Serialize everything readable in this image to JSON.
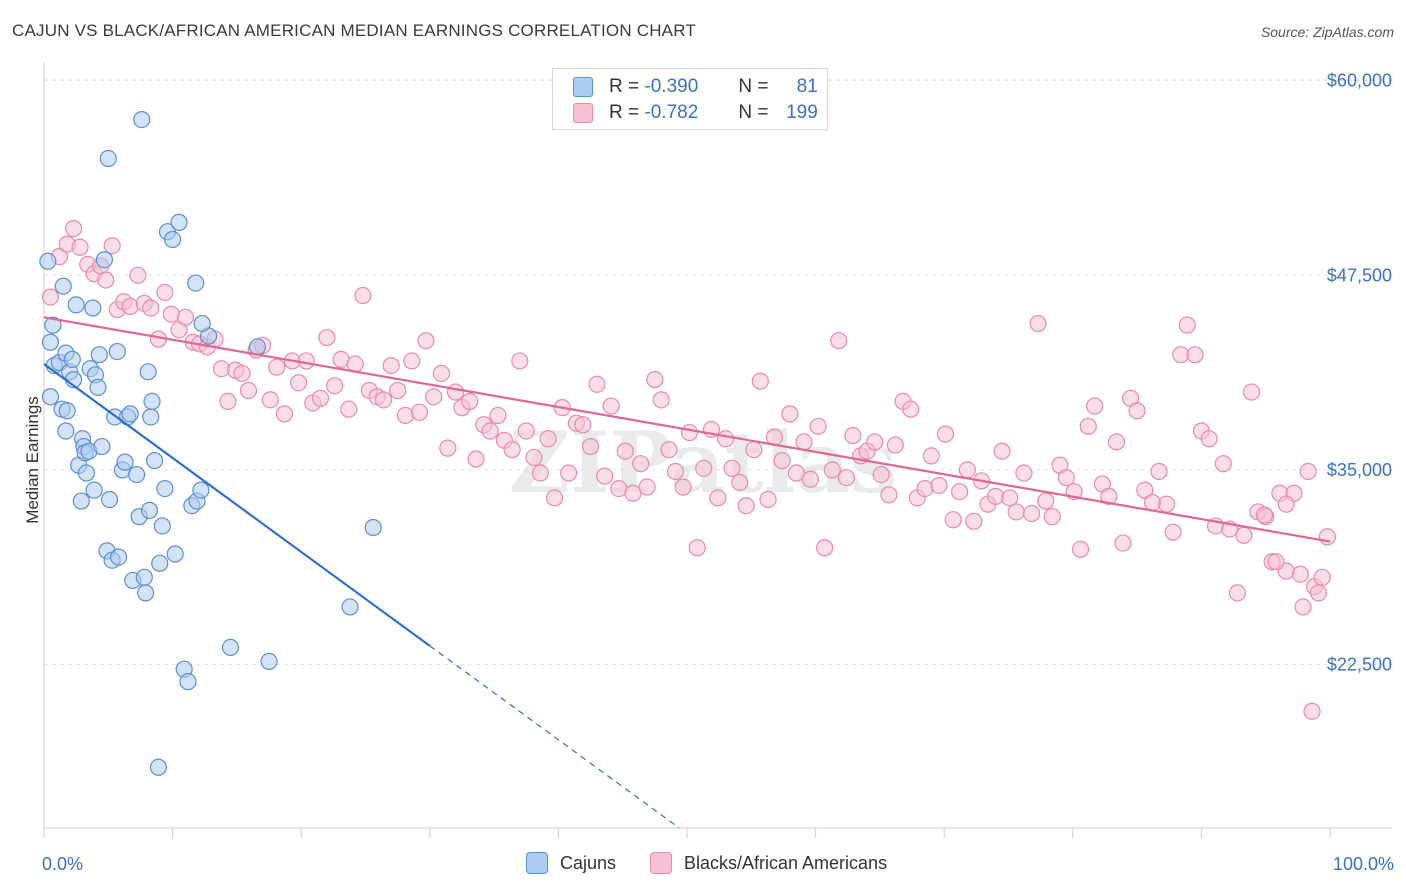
{
  "title": "CAJUN VS BLACK/AFRICAN AMERICAN MEDIAN EARNINGS CORRELATION CHART",
  "source": "Source: ZipAtlas.com",
  "watermark": "ZIPatlas",
  "colors": {
    "cajun_fill": "#aecbf0",
    "cajun_stroke": "#5b8fd6",
    "cajun_line": "#2f6fcf",
    "black_fill": "#f6c1d3",
    "black_stroke": "#e98aab",
    "black_line": "#e06694",
    "axis_label": "#3a72c4",
    "grid": "#e3e3e3"
  },
  "legend": {
    "rows": [
      {
        "r_label": "R =",
        "r_value": "-0.390",
        "n_label": "N =",
        "n_value": "81"
      },
      {
        "r_label": "R =",
        "r_value": "-0.782",
        "n_label": "N =",
        "n_value": "199"
      }
    ]
  },
  "bottom_legend": [
    "Cajuns",
    "Blacks/African Americans"
  ],
  "chart_data": {
    "type": "scatter",
    "title": "CAJUN VS BLACK/AFRICAN AMERICAN MEDIAN EARNINGS CORRELATION CHART",
    "xlabel": "",
    "ylabel": "Median Earnings",
    "x_tick_labels": [
      "0.0%",
      "100.0%"
    ],
    "y_tick_labels": [
      "$22,500",
      "$35,000",
      "$47,500",
      "$60,000"
    ],
    "y_ticks": [
      22500,
      35000,
      47500,
      60000
    ],
    "xlim": [
      0,
      100
    ],
    "ylim": [
      12000,
      61200
    ],
    "grid": true,
    "legend_position": "top-center",
    "series": [
      {
        "name": "Cajuns",
        "R": -0.39,
        "N": 81,
        "trend": {
          "x0": 0,
          "y0": 41800,
          "x1": 30,
          "y1": 23700,
          "dashed_to_x": 53,
          "dashed_to_y": 10300
        },
        "points": [
          [
            0.3,
            48400
          ],
          [
            0.5,
            43200
          ],
          [
            0.7,
            44300
          ],
          [
            0.5,
            39700
          ],
          [
            0.8,
            41700
          ],
          [
            1.2,
            41900
          ],
          [
            1.4,
            38900
          ],
          [
            1.5,
            46800
          ],
          [
            1.7,
            42500
          ],
          [
            1.7,
            37500
          ],
          [
            1.8,
            38800
          ],
          [
            2.0,
            41300
          ],
          [
            2.2,
            42100
          ],
          [
            2.3,
            40800
          ],
          [
            2.5,
            45600
          ],
          [
            2.7,
            35300
          ],
          [
            2.9,
            33000
          ],
          [
            3.0,
            37000
          ],
          [
            3.1,
            36500
          ],
          [
            3.2,
            36100
          ],
          [
            3.3,
            34800
          ],
          [
            3.5,
            36200
          ],
          [
            3.6,
            41500
          ],
          [
            3.8,
            45400
          ],
          [
            3.9,
            33700
          ],
          [
            4.0,
            41100
          ],
          [
            4.2,
            40300
          ],
          [
            4.3,
            42400
          ],
          [
            4.5,
            36500
          ],
          [
            4.7,
            48500
          ],
          [
            4.9,
            29800
          ],
          [
            5.0,
            55000
          ],
          [
            5.1,
            33100
          ],
          [
            5.3,
            29200
          ],
          [
            5.5,
            38400
          ],
          [
            5.7,
            42600
          ],
          [
            5.8,
            29400
          ],
          [
            6.1,
            35000
          ],
          [
            6.3,
            35500
          ],
          [
            6.5,
            38400
          ],
          [
            6.7,
            38600
          ],
          [
            6.9,
            27900
          ],
          [
            7.2,
            34700
          ],
          [
            7.4,
            32000
          ],
          [
            7.6,
            57500
          ],
          [
            7.8,
            28100
          ],
          [
            7.9,
            27100
          ],
          [
            8.1,
            41300
          ],
          [
            8.2,
            32400
          ],
          [
            8.3,
            38400
          ],
          [
            8.4,
            39400
          ],
          [
            8.6,
            35600
          ],
          [
            9.0,
            29000
          ],
          [
            9.2,
            31400
          ],
          [
            9.4,
            33800
          ],
          [
            9.6,
            50300
          ],
          [
            10.0,
            49800
          ],
          [
            10.2,
            29600
          ],
          [
            10.5,
            50900
          ],
          [
            10.9,
            22200
          ],
          [
            11.2,
            21400
          ],
          [
            11.5,
            32700
          ],
          [
            11.8,
            47000
          ],
          [
            11.9,
            33000
          ],
          [
            12.2,
            33700
          ],
          [
            12.8,
            43600
          ],
          [
            14.5,
            23600
          ],
          [
            16.6,
            42900
          ],
          [
            17.5,
            22700
          ],
          [
            25.6,
            31300
          ],
          [
            23.8,
            26200
          ],
          [
            8.9,
            15900
          ],
          [
            12.3,
            44400
          ]
        ]
      },
      {
        "name": "Blacks/African Americans",
        "R": -0.782,
        "N": 199,
        "trend": {
          "x0": 0,
          "y0": 44800,
          "x1": 100,
          "y1": 30400
        },
        "points": [
          [
            0.5,
            46100
          ],
          [
            1.2,
            48700
          ],
          [
            1.8,
            49500
          ],
          [
            2.3,
            50500
          ],
          [
            2.8,
            49300
          ],
          [
            3.4,
            48200
          ],
          [
            3.9,
            47600
          ],
          [
            4.4,
            48100
          ],
          [
            4.8,
            47200
          ],
          [
            5.3,
            49400
          ],
          [
            5.7,
            45300
          ],
          [
            6.2,
            45800
          ],
          [
            6.7,
            45500
          ],
          [
            7.3,
            47500
          ],
          [
            7.8,
            45700
          ],
          [
            8.3,
            45400
          ],
          [
            8.9,
            43400
          ],
          [
            9.4,
            46400
          ],
          [
            9.9,
            45000
          ],
          [
            10.5,
            44000
          ],
          [
            11.0,
            44800
          ],
          [
            11.6,
            43200
          ],
          [
            12.1,
            43100
          ],
          [
            12.7,
            42900
          ],
          [
            13.3,
            43400
          ],
          [
            13.8,
            41500
          ],
          [
            14.3,
            39400
          ],
          [
            14.9,
            41400
          ],
          [
            15.4,
            41200
          ],
          [
            15.9,
            40100
          ],
          [
            16.5,
            42700
          ],
          [
            17.0,
            43000
          ],
          [
            17.6,
            39500
          ],
          [
            18.1,
            41600
          ],
          [
            18.7,
            38600
          ],
          [
            19.3,
            42000
          ],
          [
            19.8,
            40600
          ],
          [
            20.4,
            42000
          ],
          [
            20.9,
            39300
          ],
          [
            21.5,
            39600
          ],
          [
            22.0,
            43500
          ],
          [
            22.6,
            40400
          ],
          [
            23.1,
            42100
          ],
          [
            23.7,
            38900
          ],
          [
            24.2,
            41800
          ],
          [
            24.8,
            46200
          ],
          [
            25.3,
            40100
          ],
          [
            25.9,
            39700
          ],
          [
            26.4,
            39500
          ],
          [
            27.0,
            41700
          ],
          [
            27.5,
            40100
          ],
          [
            28.1,
            38500
          ],
          [
            28.6,
            42000
          ],
          [
            29.2,
            38700
          ],
          [
            29.7,
            43300
          ],
          [
            30.3,
            39700
          ],
          [
            30.9,
            41200
          ],
          [
            31.4,
            36400
          ],
          [
            32.0,
            40000
          ],
          [
            32.5,
            39000
          ],
          [
            33.1,
            39400
          ],
          [
            33.6,
            35700
          ],
          [
            34.2,
            37900
          ],
          [
            34.7,
            37500
          ],
          [
            35.3,
            38500
          ],
          [
            35.8,
            36900
          ],
          [
            36.4,
            36300
          ],
          [
            37.0,
            42000
          ],
          [
            37.5,
            37500
          ],
          [
            38.1,
            35800
          ],
          [
            38.6,
            34800
          ],
          [
            39.2,
            37000
          ],
          [
            39.7,
            33200
          ],
          [
            40.3,
            39000
          ],
          [
            40.8,
            34800
          ],
          [
            41.4,
            38000
          ],
          [
            41.9,
            37900
          ],
          [
            42.5,
            36500
          ],
          [
            43.0,
            40500
          ],
          [
            43.6,
            34600
          ],
          [
            44.1,
            39100
          ],
          [
            44.7,
            33800
          ],
          [
            45.2,
            36200
          ],
          [
            45.8,
            33500
          ],
          [
            46.4,
            35400
          ],
          [
            46.9,
            33900
          ],
          [
            47.5,
            40800
          ],
          [
            48.0,
            39500
          ],
          [
            48.6,
            36300
          ],
          [
            49.1,
            34900
          ],
          [
            49.7,
            33900
          ],
          [
            50.2,
            37400
          ],
          [
            50.8,
            30000
          ],
          [
            51.3,
            35100
          ],
          [
            51.9,
            37600
          ],
          [
            52.4,
            33200
          ],
          [
            53.0,
            37000
          ],
          [
            53.5,
            35100
          ],
          [
            54.1,
            34200
          ],
          [
            54.6,
            32700
          ],
          [
            55.2,
            36300
          ],
          [
            55.7,
            40700
          ],
          [
            56.3,
            33100
          ],
          [
            56.8,
            37100
          ],
          [
            57.4,
            35600
          ],
          [
            58.0,
            38600
          ],
          [
            58.5,
            34800
          ],
          [
            59.1,
            36800
          ],
          [
            59.6,
            34400
          ],
          [
            60.2,
            37800
          ],
          [
            60.7,
            30000
          ],
          [
            61.3,
            35000
          ],
          [
            61.8,
            43300
          ],
          [
            62.4,
            34500
          ],
          [
            62.9,
            37200
          ],
          [
            63.5,
            35900
          ],
          [
            64.0,
            36200
          ],
          [
            64.6,
            36800
          ],
          [
            65.1,
            34700
          ],
          [
            65.7,
            33400
          ],
          [
            66.2,
            36600
          ],
          [
            66.8,
            39400
          ],
          [
            67.4,
            38900
          ],
          [
            67.9,
            33200
          ],
          [
            68.5,
            33800
          ],
          [
            69.0,
            35900
          ],
          [
            69.6,
            34000
          ],
          [
            70.1,
            37300
          ],
          [
            70.7,
            31800
          ],
          [
            71.2,
            33600
          ],
          [
            71.8,
            35000
          ],
          [
            72.3,
            31700
          ],
          [
            72.9,
            34300
          ],
          [
            73.4,
            32800
          ],
          [
            74.0,
            33300
          ],
          [
            74.5,
            36200
          ],
          [
            75.1,
            33200
          ],
          [
            75.6,
            32300
          ],
          [
            76.2,
            34800
          ],
          [
            76.8,
            32200
          ],
          [
            77.3,
            44400
          ],
          [
            77.9,
            33000
          ],
          [
            78.4,
            32000
          ],
          [
            79.0,
            35300
          ],
          [
            79.5,
            34500
          ],
          [
            80.1,
            33600
          ],
          [
            80.6,
            29900
          ],
          [
            81.2,
            37800
          ],
          [
            81.7,
            39100
          ],
          [
            82.3,
            34100
          ],
          [
            82.8,
            33300
          ],
          [
            83.4,
            36800
          ],
          [
            83.9,
            30300
          ],
          [
            84.5,
            39600
          ],
          [
            85.0,
            38800
          ],
          [
            85.6,
            33700
          ],
          [
            86.2,
            32900
          ],
          [
            86.7,
            34900
          ],
          [
            87.3,
            32800
          ],
          [
            87.8,
            31000
          ],
          [
            88.4,
            42400
          ],
          [
            88.9,
            44300
          ],
          [
            89.5,
            42400
          ],
          [
            90.0,
            37500
          ],
          [
            90.6,
            37000
          ],
          [
            91.1,
            31400
          ],
          [
            91.7,
            35400
          ],
          [
            92.2,
            31200
          ],
          [
            92.8,
            27100
          ],
          [
            93.3,
            30800
          ],
          [
            93.9,
            40000
          ],
          [
            94.4,
            32300
          ],
          [
            95.0,
            32000
          ],
          [
            95.5,
            29100
          ],
          [
            96.1,
            33500
          ],
          [
            96.6,
            28500
          ],
          [
            97.2,
            33500
          ],
          [
            97.7,
            28300
          ],
          [
            98.3,
            34900
          ],
          [
            98.8,
            27500
          ],
          [
            99.4,
            28100
          ],
          [
            99.8,
            30700
          ],
          [
            95.8,
            29100
          ],
          [
            97.9,
            26200
          ],
          [
            98.6,
            19500
          ],
          [
            99.1,
            27100
          ],
          [
            96.6,
            32800
          ],
          [
            94.9,
            32100
          ]
        ]
      }
    ]
  }
}
